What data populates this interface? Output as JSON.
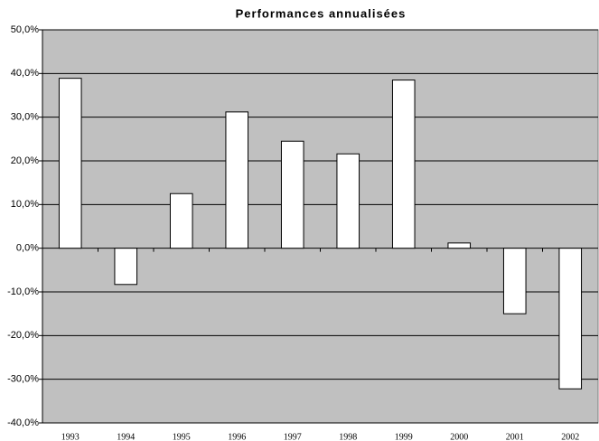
{
  "chart_data": {
    "type": "bar",
    "title": "Performances annualisées",
    "categories": [
      "1993",
      "1994",
      "1995",
      "1996",
      "1997",
      "1998",
      "1999",
      "2000",
      "2001",
      "2002"
    ],
    "values": [
      38.9,
      -8.3,
      12.5,
      31.2,
      24.5,
      21.6,
      38.5,
      1.2,
      -15.0,
      -32.2
    ],
    "color": "#ffffff",
    "background": "#c0c0c0",
    "ylim": [
      -40,
      50
    ],
    "yticks": [
      {
        "value": -40,
        "label": "-40,0%"
      },
      {
        "value": -30,
        "label": "-30,0%"
      },
      {
        "value": -20,
        "label": "-20,0%"
      },
      {
        "value": -10,
        "label": "-10,0%"
      },
      {
        "value": 0,
        "label": "0,0%"
      },
      {
        "value": 10,
        "label": "10,0%"
      },
      {
        "value": 20,
        "label": "20,0%"
      },
      {
        "value": 30,
        "label": "30,0%"
      },
      {
        "value": 40,
        "label": "40,0%"
      },
      {
        "value": 50,
        "label": "50,0%"
      }
    ],
    "grid": true
  }
}
